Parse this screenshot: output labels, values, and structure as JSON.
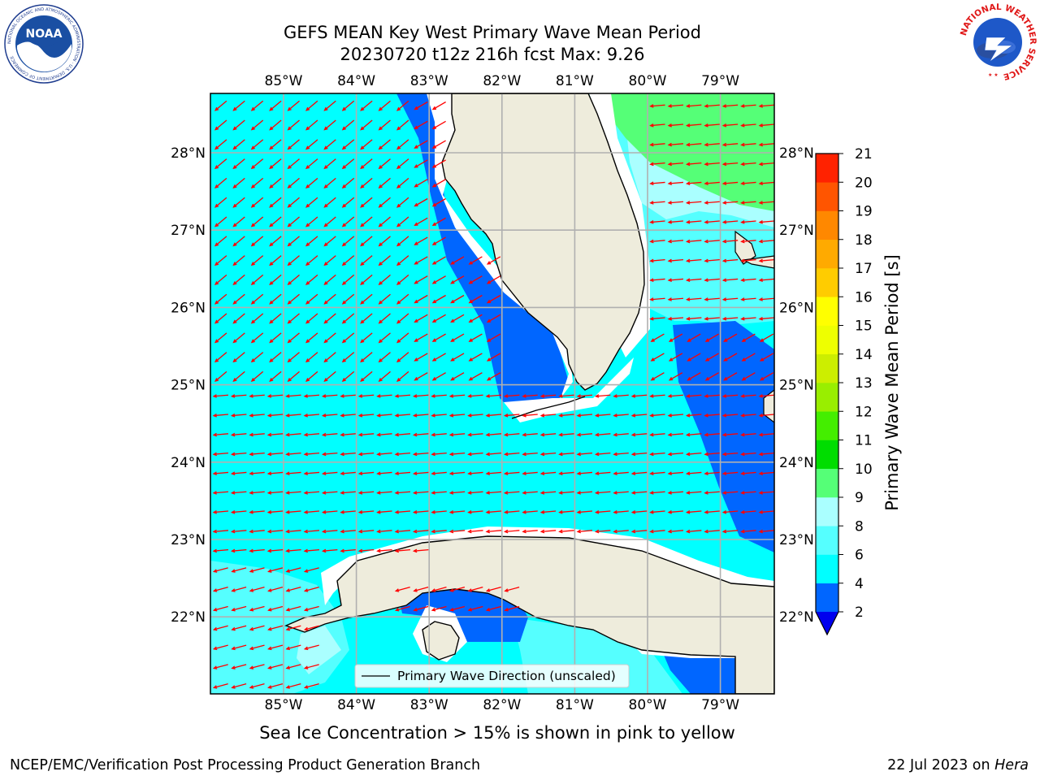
{
  "header": {
    "title_line1": "GEFS MEAN Key West Primary Wave Mean Period",
    "title_line2": "20230720 t12z 216h fcst   Max: 9.26"
  },
  "logos": {
    "noaa_text": "NOAA",
    "noaa_ring": "NATIONAL OCEANIC AND ATMOSPHERIC ADMINISTRATION · U.S. DEPARTMENT OF COMMERCE",
    "nws_ring": "NATIONAL WEATHER SERVICE"
  },
  "map": {
    "lon_labels": [
      "85°W",
      "84°W",
      "83°W",
      "82°W",
      "81°W",
      "80°W",
      "79°W"
    ],
    "lat_labels": [
      "28°N",
      "27°N",
      "26°N",
      "25°N",
      "24°N",
      "23°N",
      "22°N"
    ],
    "legend_label": "Primary Wave Direction (unscaled)",
    "vector_color": "#ff0000",
    "land_color": "#eeecdc"
  },
  "colorbar": {
    "label": "Primary Wave Mean Period [s]",
    "ticks": [
      "2",
      "4",
      "6",
      "8",
      "9",
      "10",
      "11",
      "12",
      "13",
      "14",
      "15",
      "16",
      "17",
      "18",
      "19",
      "20",
      "21"
    ],
    "colors": [
      "#0066ff",
      "#00ffff",
      "#55ffff",
      "#aaffff",
      "#55ff77",
      "#00dd00",
      "#44ee00",
      "#99ee00",
      "#ccee00",
      "#eeff00",
      "#ffff00",
      "#ffcc00",
      "#ffaa00",
      "#ff8800",
      "#ff5500",
      "#ff2200"
    ],
    "extend_color": "#0000ee"
  },
  "caption": "Sea Ice Concentration > 15% is shown in pink to yellow",
  "footer": {
    "left": "NCEP/EMC/Verification Post Processing Product Generation Branch",
    "right_date": "22 Jul 2023 on ",
    "right_machine": "Hera"
  }
}
